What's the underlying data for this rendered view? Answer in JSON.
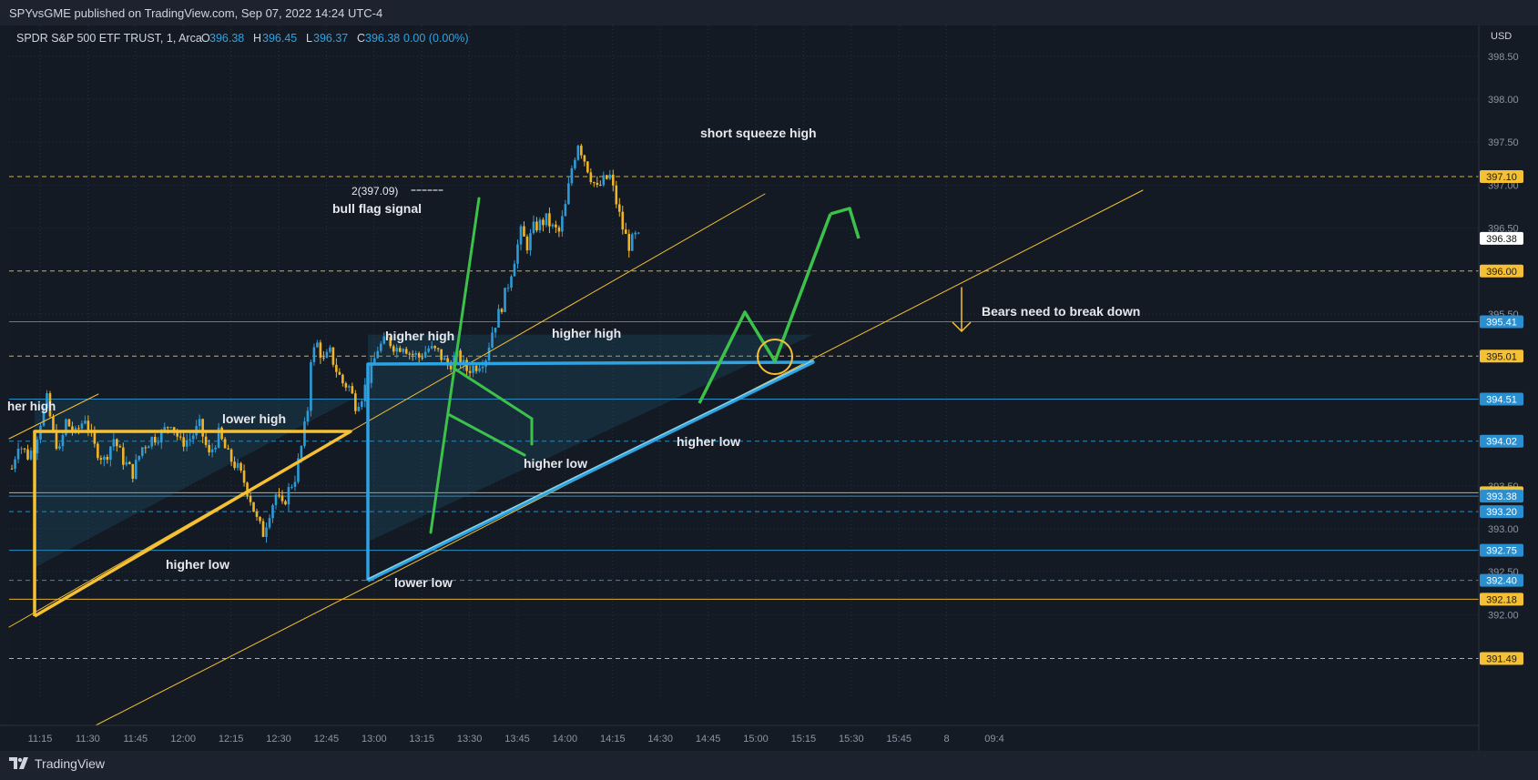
{
  "header": {
    "published": "SPYvsGME published on TradingView.com, Sep 07, 2022 14:24 UTC-4"
  },
  "legend": {
    "symbol": "SPDR S&P 500 ETF TRUST, 1, Arca",
    "o_label": "O",
    "o": "396.38",
    "h_label": "H",
    "h": "396.45",
    "l_label": "L",
    "l": "396.37",
    "c_label": "C",
    "c": "396.38",
    "change": "0.00 (0.00%)"
  },
  "currency": "USD",
  "footer": {
    "brand": "TradingView",
    "logo_icon": "tradingview-logo-icon"
  },
  "colors": {
    "background": "#131a24",
    "grid": "#243040",
    "text": "#d1d4dc",
    "axis_text": "#8c94a3",
    "bull": "#2f9bd6",
    "bear": "#f0b429",
    "yellow": "#f5c033",
    "blue": "#2ea3e3",
    "green": "#3cc24a"
  },
  "chart_data": {
    "type": "candlestick",
    "x_tick_labels": [
      "11:15",
      "11:30",
      "11:45",
      "12:00",
      "12:15",
      "12:30",
      "12:45",
      "13:00",
      "13:15",
      "13:30",
      "13:45",
      "14:00",
      "14:15",
      "14:30",
      "14:45",
      "15:00",
      "15:15",
      "15:30",
      "15:45",
      "8",
      "09:4"
    ],
    "y_tick_labels": [
      "398.50",
      "398.00",
      "397.50",
      "397.00",
      "396.50",
      "395.50",
      "393.50",
      "393.00",
      "392.50",
      "392.00"
    ],
    "ylim": [
      391.15,
      398.85
    ],
    "current_price": "396.38",
    "price_levels": [
      {
        "label": "397.10",
        "value": 397.1,
        "style": "yellow-dashed"
      },
      {
        "label": "396.00",
        "value": 396.0,
        "style": "yellow-dashed"
      },
      {
        "label": "395.41",
        "value": 395.41,
        "style": "blue-solid"
      },
      {
        "label": "395.01",
        "value": 395.01,
        "style": "yellow-dashed"
      },
      {
        "label": "394.51",
        "value": 394.51,
        "style": "blue-solid"
      },
      {
        "label": "394.02",
        "value": 394.02,
        "style": "blue-dashed"
      },
      {
        "label": "393.42",
        "value": 393.42,
        "style": "yellow-solid"
      },
      {
        "label": "393.38",
        "value": 393.38,
        "style": "blue-solid"
      },
      {
        "label": "393.20",
        "value": 393.2,
        "style": "blue-dashed"
      },
      {
        "label": "392.75",
        "value": 392.75,
        "style": "blue-solid"
      },
      {
        "label": "392.40",
        "value": 392.4,
        "style": "blue-dashed"
      },
      {
        "label": "392.18",
        "value": 392.18,
        "style": "yellow-solid"
      },
      {
        "label": "391.49",
        "value": 391.49,
        "style": "yellow-dashed"
      }
    ],
    "close_path": [
      [
        "11:07",
        393.7
      ],
      [
        "11:09",
        394.0
      ],
      [
        "11:12",
        393.85
      ],
      [
        "11:14",
        393.95
      ],
      [
        "11:16",
        394.25
      ],
      [
        "11:18",
        394.5
      ],
      [
        "11:20",
        394.1
      ],
      [
        "11:22",
        393.9
      ],
      [
        "11:24",
        394.25
      ],
      [
        "11:27",
        394.1
      ],
      [
        "11:30",
        394.3
      ],
      [
        "11:33",
        393.95
      ],
      [
        "11:36",
        393.8
      ],
      [
        "11:39",
        394.05
      ],
      [
        "11:42",
        393.8
      ],
      [
        "11:45",
        393.65
      ],
      [
        "11:48",
        393.95
      ],
      [
        "11:51",
        394.05
      ],
      [
        "11:54",
        394.1
      ],
      [
        "11:57",
        394.25
      ],
      [
        "12:00",
        394.0
      ],
      [
        "12:03",
        394.05
      ],
      [
        "12:06",
        394.2
      ],
      [
        "12:09",
        393.85
      ],
      [
        "12:12",
        394.1
      ],
      [
        "12:15",
        393.85
      ],
      [
        "12:18",
        393.7
      ],
      [
        "12:20",
        393.55
      ],
      [
        "12:22",
        393.35
      ],
      [
        "12:24",
        393.1
      ],
      [
        "12:26",
        392.95
      ],
      [
        "12:28",
        393.2
      ],
      [
        "12:30",
        393.4
      ],
      [
        "12:32",
        393.25
      ],
      [
        "12:34",
        393.45
      ],
      [
        "12:36",
        393.6
      ],
      [
        "12:38",
        393.95
      ],
      [
        "12:40",
        394.4
      ],
      [
        "12:41",
        395.0
      ],
      [
        "12:43",
        395.15
      ],
      [
        "12:45",
        394.95
      ],
      [
        "12:47",
        395.05
      ],
      [
        "12:49",
        394.85
      ],
      [
        "12:51",
        394.7
      ],
      [
        "12:53",
        394.65
      ],
      [
        "12:55",
        394.45
      ],
      [
        "12:57",
        394.55
      ],
      [
        "13:00",
        394.85
      ],
      [
        "13:02",
        395.1
      ],
      [
        "13:05",
        395.2
      ],
      [
        "13:08",
        395.1
      ],
      [
        "13:10",
        395.15
      ],
      [
        "13:12",
        395.05
      ],
      [
        "13:15",
        395.0
      ],
      [
        "13:18",
        395.1
      ],
      [
        "13:21",
        395.05
      ],
      [
        "13:24",
        394.9
      ],
      [
        "13:27",
        395.0
      ],
      [
        "13:30",
        394.85
      ],
      [
        "13:33",
        394.9
      ],
      [
        "13:36",
        395.0
      ],
      [
        "13:38",
        395.3
      ],
      [
        "13:41",
        395.6
      ],
      [
        "13:43",
        395.85
      ],
      [
        "13:45",
        396.15
      ],
      [
        "13:47",
        396.45
      ],
      [
        "13:49",
        396.3
      ],
      [
        "13:51",
        396.5
      ],
      [
        "13:53",
        396.55
      ],
      [
        "13:55",
        396.6
      ],
      [
        "13:57",
        396.5
      ],
      [
        "13:59",
        396.45
      ],
      [
        "14:01",
        396.75
      ],
      [
        "14:03",
        397.2
      ],
      [
        "14:05",
        397.5
      ],
      [
        "14:07",
        397.3
      ],
      [
        "14:09",
        397.1
      ],
      [
        "14:11",
        396.95
      ],
      [
        "14:13",
        397.05
      ],
      [
        "14:15",
        397.1
      ],
      [
        "14:17",
        396.8
      ],
      [
        "14:19",
        396.5
      ],
      [
        "14:21",
        396.3
      ],
      [
        "14:23",
        396.4
      ],
      [
        "14:24",
        396.38
      ]
    ],
    "annotations": [
      {
        "text": "her high"
      },
      {
        "text": "lower high"
      },
      {
        "text": "higher low"
      },
      {
        "text": "higher high"
      },
      {
        "text": "lower low"
      },
      {
        "text": "higher high"
      },
      {
        "text": "higher low"
      },
      {
        "text": "higher low"
      },
      {
        "text": "2(397.09)"
      },
      {
        "text": "bull flag signal"
      },
      {
        "text": "short squeeze high"
      },
      {
        "text": "Bears need to break down"
      }
    ],
    "grid": true
  }
}
